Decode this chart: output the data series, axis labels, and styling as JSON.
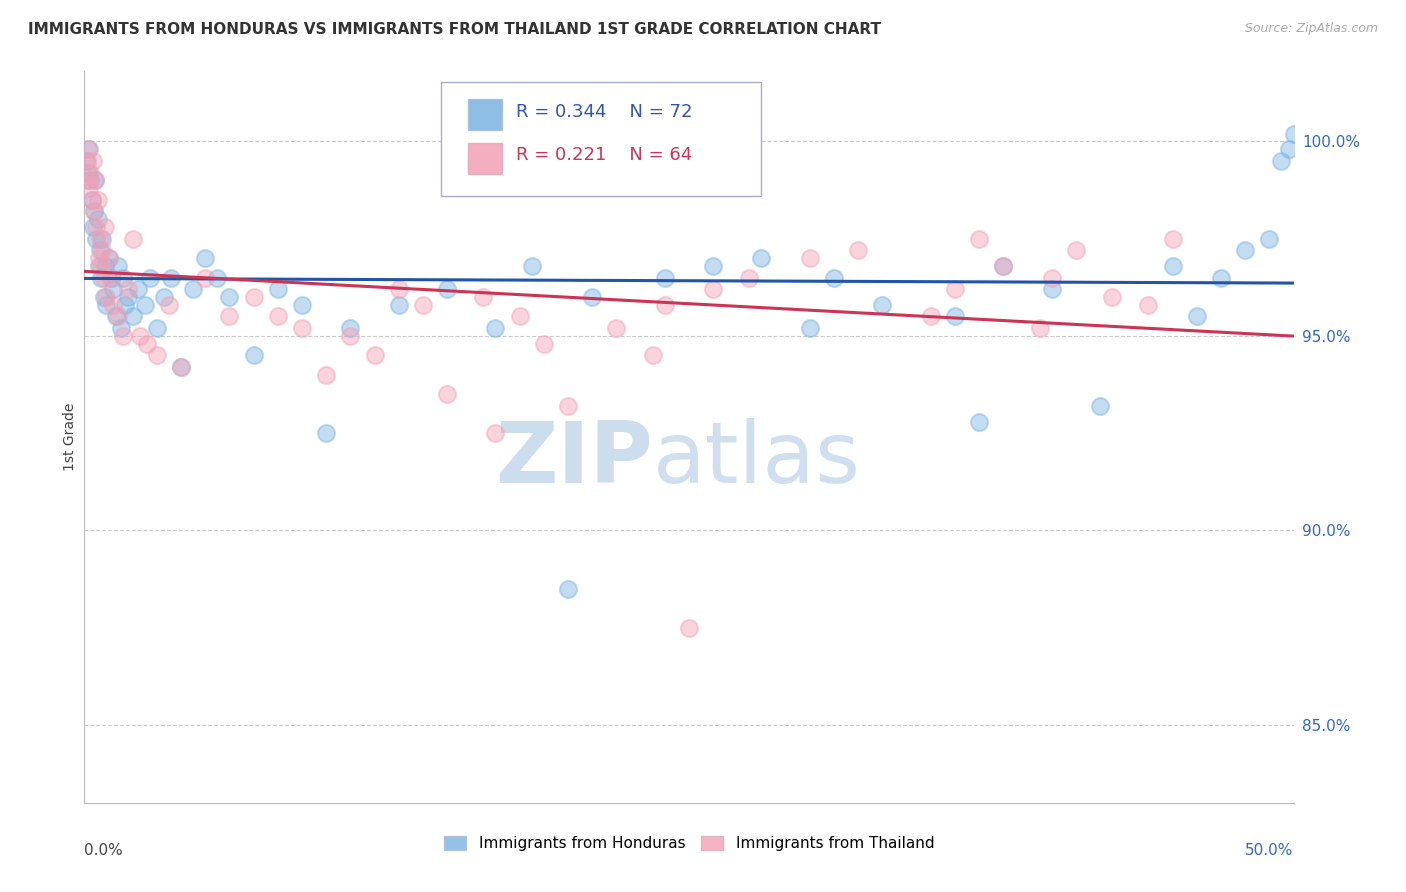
{
  "title": "IMMIGRANTS FROM HONDURAS VS IMMIGRANTS FROM THAILAND 1ST GRADE CORRELATION CHART",
  "source": "Source: ZipAtlas.com",
  "ylabel": "1st Grade",
  "xlim": [
    0.0,
    50.0
  ],
  "ylim": [
    83.0,
    101.8
  ],
  "yticks": [
    85.0,
    90.0,
    95.0,
    100.0
  ],
  "ytick_labels": [
    "85.0%",
    "90.0%",
    "95.0%",
    "100.0%"
  ],
  "legend_R_blue": "R = 0.344",
  "legend_N_blue": "N = 72",
  "legend_R_pink": "R = 0.221",
  "legend_N_pink": "N = 64",
  "blue_color": "#7ab3e0",
  "pink_color": "#f4a0b5",
  "blue_line_color": "#2255aa",
  "pink_line_color": "#cc3355",
  "blue_x": [
    0.1,
    0.15,
    0.2,
    0.25,
    0.3,
    0.35,
    0.4,
    0.45,
    0.5,
    0.55,
    0.6,
    0.65,
    0.7,
    0.75,
    0.8,
    0.85,
    0.9,
    1.0,
    1.1,
    1.2,
    1.3,
    1.4,
    1.5,
    1.6,
    1.7,
    1.8,
    2.0,
    2.2,
    2.5,
    2.7,
    3.0,
    3.3,
    3.6,
    4.0,
    4.5,
    5.0,
    5.5,
    6.0,
    7.0,
    8.0,
    9.0,
    10.0,
    11.0,
    13.0,
    15.0,
    17.0,
    18.5,
    20.0,
    21.0,
    24.0,
    26.0,
    28.0,
    30.0,
    31.0,
    33.0,
    36.0,
    37.0,
    38.0,
    40.0,
    42.0,
    45.0,
    46.0,
    47.0,
    48.0,
    49.0,
    49.5,
    49.8,
    50.0,
    50.2,
    50.3,
    50.4,
    50.5
  ],
  "blue_y": [
    99.5,
    99.2,
    99.8,
    99.0,
    98.5,
    97.8,
    98.2,
    99.0,
    97.5,
    98.0,
    96.8,
    97.2,
    96.5,
    97.5,
    96.0,
    96.8,
    95.8,
    97.0,
    96.5,
    96.2,
    95.5,
    96.8,
    95.2,
    96.5,
    95.8,
    96.0,
    95.5,
    96.2,
    95.8,
    96.5,
    95.2,
    96.0,
    96.5,
    94.2,
    96.2,
    97.0,
    96.5,
    96.0,
    94.5,
    96.2,
    95.8,
    92.5,
    95.2,
    95.8,
    96.2,
    95.2,
    96.8,
    88.5,
    96.0,
    96.5,
    96.8,
    97.0,
    95.2,
    96.5,
    95.8,
    95.5,
    92.8,
    96.8,
    96.2,
    93.2,
    96.8,
    95.5,
    96.5,
    97.2,
    97.5,
    99.5,
    99.8,
    100.2,
    100.0,
    99.5,
    100.5,
    100.3
  ],
  "pink_x": [
    0.05,
    0.1,
    0.15,
    0.2,
    0.25,
    0.3,
    0.35,
    0.4,
    0.45,
    0.5,
    0.55,
    0.6,
    0.65,
    0.7,
    0.75,
    0.8,
    0.85,
    0.9,
    1.0,
    1.1,
    1.2,
    1.4,
    1.6,
    1.8,
    2.0,
    2.3,
    2.6,
    3.0,
    3.5,
    4.0,
    5.0,
    6.0,
    7.0,
    8.0,
    9.0,
    10.0,
    11.0,
    12.0,
    13.0,
    14.0,
    15.0,
    16.5,
    17.0,
    18.0,
    19.0,
    20.0,
    22.0,
    23.5,
    24.0,
    25.0,
    26.0,
    27.5,
    30.0,
    32.0,
    35.0,
    36.0,
    37.0,
    38.0,
    39.5,
    40.0,
    41.0,
    42.5,
    44.0,
    45.0
  ],
  "pink_y": [
    99.5,
    99.0,
    99.8,
    98.8,
    99.2,
    98.5,
    99.5,
    98.2,
    99.0,
    97.8,
    98.5,
    97.0,
    97.5,
    96.8,
    97.2,
    96.5,
    97.8,
    96.0,
    97.0,
    96.5,
    95.8,
    95.5,
    95.0,
    96.2,
    97.5,
    95.0,
    94.8,
    94.5,
    95.8,
    94.2,
    96.5,
    95.5,
    96.0,
    95.5,
    95.2,
    94.0,
    95.0,
    94.5,
    96.2,
    95.8,
    93.5,
    96.0,
    92.5,
    95.5,
    94.8,
    93.2,
    95.2,
    94.5,
    95.8,
    87.5,
    96.2,
    96.5,
    97.0,
    97.2,
    95.5,
    96.2,
    97.5,
    96.8,
    95.2,
    96.5,
    97.2,
    96.0,
    95.8,
    97.5
  ]
}
